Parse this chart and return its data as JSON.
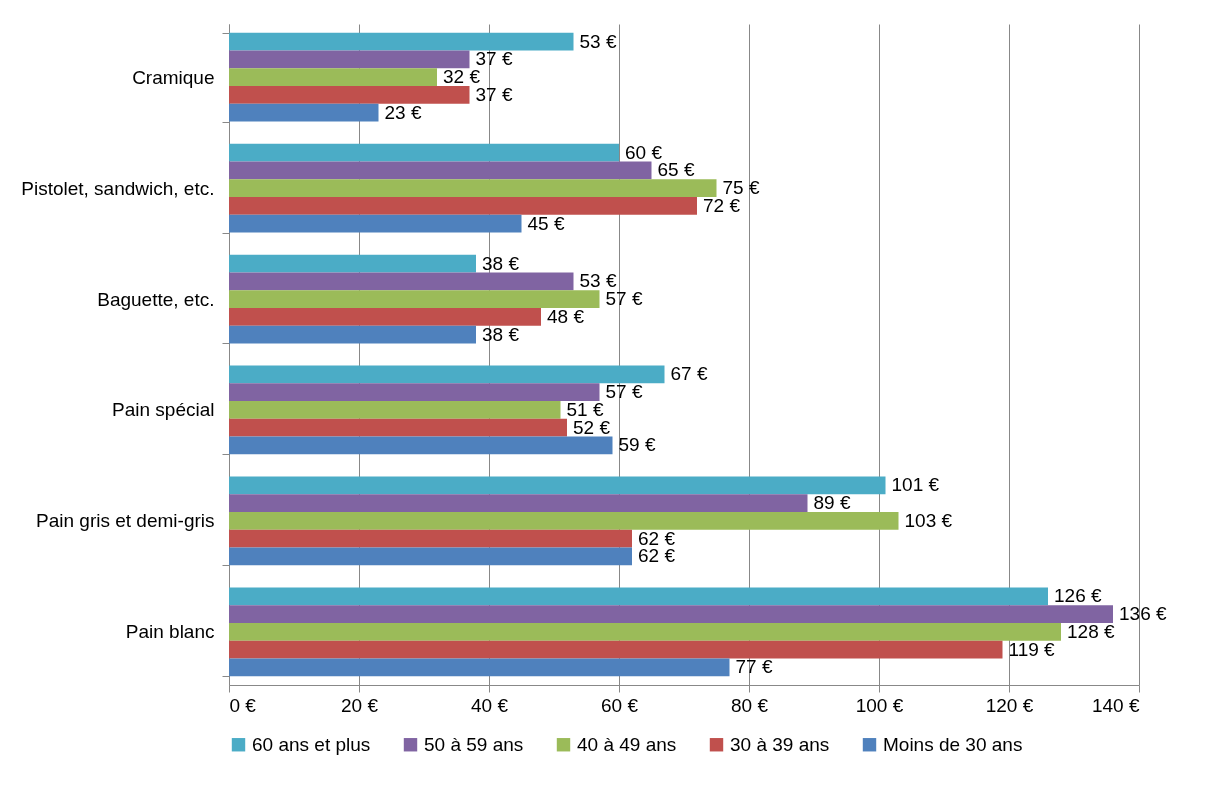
{
  "chart_data": {
    "type": "bar",
    "orientation": "horizontal",
    "categories": [
      "Cramique",
      "Pistolet, sandwich, etc.",
      "Baguette, etc.",
      "Pain spécial",
      "Pain gris et demi-gris",
      "Pain blanc"
    ],
    "series": [
      {
        "name": "60 ans et plus",
        "color": "#4bacc6",
        "values": [
          53,
          60,
          38,
          67,
          101,
          126
        ],
        "value_labels": [
          "53 €",
          "60 €",
          "38 €",
          "67 €",
          "101 €",
          "126 €"
        ]
      },
      {
        "name": "50 à 59 ans",
        "color": "#8064a2",
        "values": [
          37,
          65,
          53,
          57,
          89,
          136
        ],
        "value_labels": [
          "37 €",
          "65 €",
          "53 €",
          "57 €",
          "89 €",
          "136 €"
        ]
      },
      {
        "name": "40 à 49 ans",
        "color": "#9bbb59",
        "values": [
          32,
          75,
          57,
          51,
          103,
          128
        ],
        "value_labels": [
          "32 €",
          "75 €",
          "57 €",
          "51 €",
          "103 €",
          "128 €"
        ]
      },
      {
        "name": "30 à 39 ans",
        "color": "#c0504d",
        "values": [
          37,
          72,
          48,
          52,
          62,
          119
        ],
        "value_labels": [
          "37 €",
          "72 €",
          "48 €",
          "52 €",
          "62 €",
          "119 €"
        ]
      },
      {
        "name": "Moins de 30 ans",
        "color": "#4f81bd",
        "values": [
          23,
          45,
          38,
          59,
          62,
          77
        ],
        "value_labels": [
          "23 €",
          "45 €",
          "38 €",
          "59 €",
          "62 €",
          "77 €"
        ]
      }
    ],
    "xlim": [
      0,
      140
    ],
    "xticks": [
      {
        "value": 0,
        "label": "0 €"
      },
      {
        "value": 20,
        "label": "20 €"
      },
      {
        "value": 40,
        "label": "40 €"
      },
      {
        "value": 60,
        "label": "60 €"
      },
      {
        "value": 80,
        "label": "80 €"
      },
      {
        "value": 100,
        "label": "100 €"
      },
      {
        "value": 120,
        "label": "120 €"
      },
      {
        "value": 140,
        "label": "140 €"
      }
    ],
    "grid": "x",
    "legend": "bottom"
  }
}
